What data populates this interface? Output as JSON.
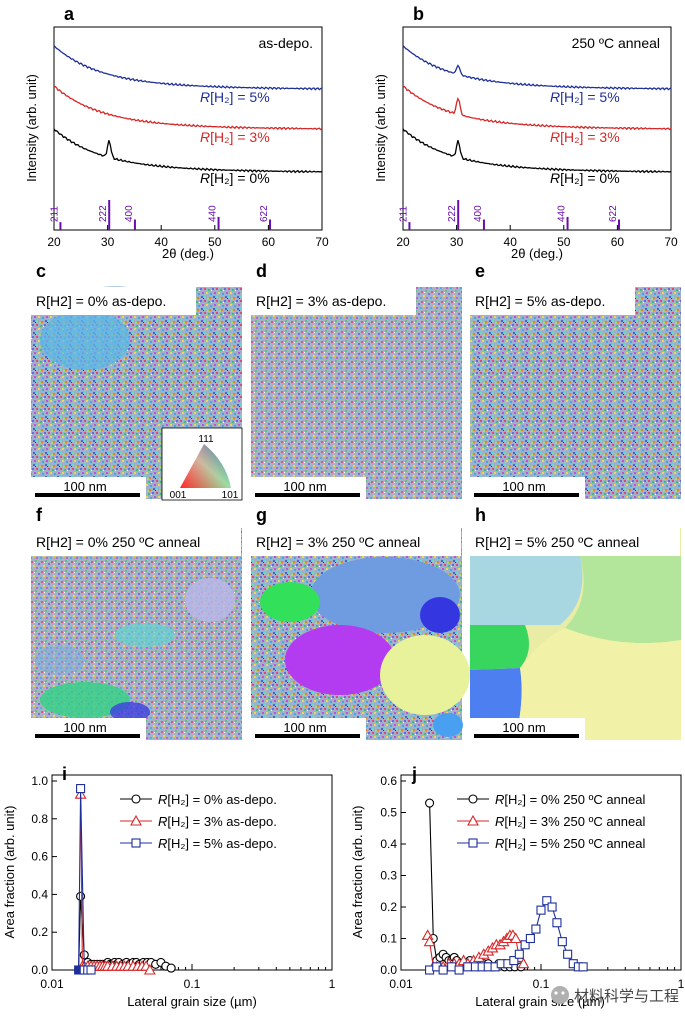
{
  "panels": {
    "a": {
      "letter": "a",
      "note": "as-depo."
    },
    "b": {
      "letter": "b",
      "note": "250 ºC anneal"
    },
    "c": {
      "letter": "c",
      "title": "R[H2] = 0% as-depo."
    },
    "d": {
      "letter": "d",
      "title": "R[H2] = 3% as-depo."
    },
    "e": {
      "letter": "e",
      "title": "R[H2] = 5% as-depo."
    },
    "f": {
      "letter": "f",
      "title": "R[H2] = 0% 250 ºC anneal"
    },
    "g": {
      "letter": "g",
      "title": "R[H2] = 3% 250 ºC anneal"
    },
    "h": {
      "letter": "h",
      "title": "R[H2] = 5% 250 ºC anneal"
    },
    "i": {
      "letter": "i"
    },
    "j": {
      "letter": "j"
    }
  },
  "scale_bar": "100 nm",
  "ipf_key": {
    "top": "111",
    "left": "001",
    "right": "101"
  },
  "watermark": "材料科学与工程",
  "colors": {
    "h0": "#000000",
    "h3": "#d62728",
    "h5": "#1f2f9a",
    "ref": "#6a0dad"
  },
  "chart_data": [
    {
      "id": "a",
      "type": "line",
      "xlabel": "2θ (deg.)",
      "ylabel": "Intensity (arb. unit)",
      "xlim": [
        20,
        70
      ],
      "xticks": [
        20,
        30,
        40,
        50,
        60,
        70
      ],
      "series": [
        {
          "name": "R[H2] = 5%",
          "label_prefix": "R",
          "label_rest": "[H₂] = 5%",
          "color": "#1f2f9a",
          "offset": 2.0,
          "peak": 0
        },
        {
          "name": "R[H2] = 3%",
          "label_prefix": "R",
          "label_rest": "[H₂] = 3%",
          "color": "#d62728",
          "offset": 1.0,
          "peak": 0
        },
        {
          "name": "R[H2] = 0%",
          "label_prefix": "R",
          "label_rest": "[H₂] = 0%",
          "color": "#000000",
          "offset": 0.0,
          "peak": 0.55
        }
      ],
      "reference_lines": [
        {
          "x": 21.2,
          "label": "211",
          "h": 0.15
        },
        {
          "x": 30.3,
          "label": "222",
          "h": 1.0
        },
        {
          "x": 35.1,
          "label": "400",
          "h": 0.25
        },
        {
          "x": 50.7,
          "label": "440",
          "h": 0.35
        },
        {
          "x": 60.3,
          "label": "622",
          "h": 0.25
        }
      ]
    },
    {
      "id": "b",
      "type": "line",
      "xlabel": "2θ (deg.)",
      "ylabel": "Intensity (arb. unit)",
      "xlim": [
        20,
        70
      ],
      "xticks": [
        20,
        30,
        40,
        50,
        60,
        70
      ],
      "series": [
        {
          "name": "R[H2] = 5%",
          "label_prefix": "R",
          "label_rest": "[H₂] = 5%",
          "color": "#1f2f9a",
          "offset": 2.0,
          "peak": 0.3
        },
        {
          "name": "R[H2] = 3%",
          "label_prefix": "R",
          "label_rest": "[H₂] = 3%",
          "color": "#d62728",
          "offset": 1.0,
          "peak": 0.55
        },
        {
          "name": "R[H2] = 0%",
          "label_prefix": "R",
          "label_rest": "[H₂] = 0%",
          "color": "#000000",
          "offset": 0.0,
          "peak": 0.55
        }
      ],
      "reference_lines": [
        {
          "x": 21.2,
          "label": "211",
          "h": 0.15
        },
        {
          "x": 30.3,
          "label": "222",
          "h": 1.0
        },
        {
          "x": 35.1,
          "label": "400",
          "h": 0.25
        },
        {
          "x": 50.7,
          "label": "440",
          "h": 0.35
        },
        {
          "x": 60.3,
          "label": "622",
          "h": 0.25
        }
      ]
    },
    {
      "id": "i",
      "type": "line",
      "xscale": "log",
      "xlabel": "Lateral grain size (µm)",
      "ylabel": "Area fraction (arb. unit)",
      "xlim": [
        0.01,
        1
      ],
      "ylim": [
        0,
        1.0
      ],
      "xticks": [
        0.01,
        0.1,
        1
      ],
      "xticklabels": [
        "0.01",
        "0.1",
        "1"
      ],
      "yticks": [
        0,
        0.2,
        0.4,
        0.6,
        0.8,
        1.0
      ],
      "yticklabels": [
        "0.0",
        "0.2",
        "0.4",
        "0.6",
        "0.8",
        "1.0"
      ],
      "legend": "top-right",
      "series": [
        {
          "name": "R[H2] = 0% as-depo.",
          "label_prefix": "R",
          "label_rest": "[H₂] = 0% as-depo.",
          "color": "#000000",
          "marker": "circle",
          "filled_index": 0,
          "x": [
            0.0155,
            0.016,
            0.017,
            0.018,
            0.019,
            0.02,
            0.021,
            0.022,
            0.023,
            0.024,
            0.025,
            0.026,
            0.027,
            0.028,
            0.029,
            0.03,
            0.032,
            0.034,
            0.036,
            0.038,
            0.04,
            0.042,
            0.045,
            0.048,
            0.051,
            0.055,
            0.06,
            0.065,
            0.071
          ],
          "y": [
            0.0,
            0.39,
            0.08,
            0.04,
            0.03,
            0.03,
            0.03,
            0.03,
            0.03,
            0.03,
            0.04,
            0.03,
            0.03,
            0.04,
            0.03,
            0.04,
            0.03,
            0.04,
            0.03,
            0.04,
            0.04,
            0.03,
            0.04,
            0.04,
            0.04,
            0.03,
            0.04,
            0.02,
            0.01
          ]
        },
        {
          "name": "R[H2] = 3% as-depo.",
          "label_prefix": "R",
          "label_rest": "[H₂] = 3% as-depo.",
          "color": "#d62728",
          "marker": "triangle",
          "x": [
            0.016,
            0.0165,
            0.017,
            0.018,
            0.019,
            0.02,
            0.021,
            0.022,
            0.023,
            0.024,
            0.025,
            0.027,
            0.029,
            0.031,
            0.033,
            0.035,
            0.038,
            0.041,
            0.044,
            0.047,
            0.05
          ],
          "y": [
            0.93,
            0.02,
            0.02,
            0.02,
            0.02,
            0.02,
            0.02,
            0.02,
            0.02,
            0.02,
            0.02,
            0.02,
            0.02,
            0.02,
            0.02,
            0.02,
            0.02,
            0.02,
            0.02,
            0.02,
            0.0
          ]
        },
        {
          "name": "R[H2] = 5% as-depo.",
          "label_prefix": "R",
          "label_rest": "[H₂] = 5% as-depo.",
          "color": "#1f2f9a",
          "marker": "square",
          "filled_index": 0,
          "x": [
            0.0155,
            0.016,
            0.017,
            0.018,
            0.019
          ],
          "y": [
            0.0,
            0.96,
            0.0,
            0.0,
            0.0
          ]
        }
      ]
    },
    {
      "id": "j",
      "type": "line",
      "xscale": "log",
      "xlabel": "Lateral grain size (µm)",
      "ylabel": "Area fraction (arb. unit)",
      "xlim": [
        0.01,
        1
      ],
      "ylim": [
        0,
        0.6
      ],
      "xticks": [
        0.01,
        0.1,
        1
      ],
      "xticklabels": [
        "0.01",
        "0.1",
        "1"
      ],
      "yticks": [
        0,
        0.1,
        0.2,
        0.3,
        0.4,
        0.5,
        0.6
      ],
      "yticklabels": [
        "0.0",
        "0.1",
        "0.2",
        "0.3",
        "0.4",
        "0.5",
        "0.6"
      ],
      "legend": "top-right",
      "series": [
        {
          "name": "R[H2] = 0% 250 ºC anneal",
          "label_prefix": "R",
          "label_rest": "[H₂] = 0% 250 ºC anneal",
          "color": "#000000",
          "marker": "circle",
          "x": [
            0.016,
            0.017,
            0.018,
            0.019,
            0.02,
            0.021,
            0.022,
            0.023,
            0.024,
            0.025,
            0.027,
            0.029,
            0.031,
            0.033,
            0.036,
            0.039,
            0.042,
            0.046,
            0.05,
            0.055,
            0.06,
            0.065,
            0.072
          ],
          "y": [
            0.53,
            0.1,
            0.03,
            0.04,
            0.05,
            0.04,
            0.03,
            0.03,
            0.04,
            0.03,
            0.02,
            0.02,
            0.03,
            0.02,
            0.02,
            0.02,
            0.02,
            0.01,
            0.02,
            0.01,
            0.01,
            0.01,
            0.01
          ]
        },
        {
          "name": "R[H2] = 3% 250 ºC anneal",
          "label_prefix": "R",
          "label_rest": "[H₂] = 3% 250 ºC anneal",
          "color": "#d62728",
          "marker": "triangle",
          "x": [
            0.0155,
            0.016,
            0.017,
            0.018,
            0.019,
            0.02,
            0.022,
            0.024,
            0.026,
            0.028,
            0.03,
            0.033,
            0.036,
            0.039,
            0.042,
            0.045,
            0.048,
            0.051,
            0.054,
            0.057,
            0.06,
            0.063,
            0.066,
            0.07,
            0.075
          ],
          "y": [
            0.11,
            0.09,
            0.01,
            0.01,
            0.01,
            0.01,
            0.02,
            0.02,
            0.02,
            0.03,
            0.02,
            0.03,
            0.04,
            0.05,
            0.06,
            0.07,
            0.08,
            0.08,
            0.09,
            0.1,
            0.11,
            0.11,
            0.1,
            0.04,
            0.02
          ]
        },
        {
          "name": "R[H2] = 5% 250 ºC anneal",
          "label_prefix": "R",
          "label_rest": "[H₂] = 5% 250 ºC anneal",
          "color": "#1f2f9a",
          "marker": "square",
          "x": [
            0.016,
            0.018,
            0.02,
            0.023,
            0.026,
            0.03,
            0.034,
            0.038,
            0.042,
            0.047,
            0.052,
            0.058,
            0.064,
            0.07,
            0.077,
            0.084,
            0.092,
            0.1,
            0.11,
            0.12,
            0.13,
            0.142,
            0.155,
            0.17,
            0.185,
            0.2
          ],
          "y": [
            0.0,
            0.01,
            0.0,
            0.01,
            0.0,
            0.01,
            0.01,
            0.01,
            0.01,
            0.01,
            0.02,
            0.02,
            0.03,
            0.05,
            0.08,
            0.1,
            0.13,
            0.19,
            0.22,
            0.2,
            0.15,
            0.09,
            0.05,
            0.02,
            0.01,
            0.01
          ]
        }
      ]
    }
  ]
}
